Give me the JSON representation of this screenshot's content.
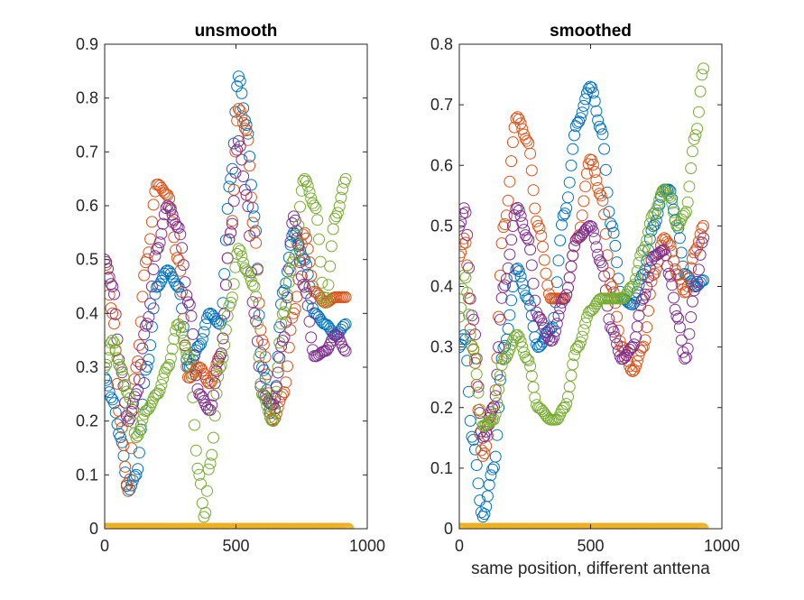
{
  "chart_data": [
    {
      "type": "scatter",
      "title": "unsmooth",
      "xlabel": "",
      "ylabel": "",
      "xlim": [
        0,
        1000
      ],
      "ylim": [
        0,
        0.9
      ],
      "xticks": [
        0,
        500,
        1000
      ],
      "xtick_labels": [
        "0",
        "500",
        "1000"
      ],
      "yticks": [
        0,
        0.1,
        0.2,
        0.3,
        0.4,
        0.5,
        0.6,
        0.7,
        0.8,
        0.9
      ],
      "ytick_labels": [
        "0",
        "0.1",
        "0.2",
        "0.3",
        "0.4",
        "0.5",
        "0.6",
        "0.7",
        "0.8",
        "0.9"
      ],
      "grid": false,
      "marker": "open-circle",
      "series": [
        {
          "color": "#0072BD",
          "x": [
            0,
            30,
            60,
            90,
            120,
            160,
            200,
            240,
            280,
            320,
            360,
            400,
            440,
            480,
            510,
            540,
            570,
            600,
            640,
            680,
            720,
            760,
            800,
            840,
            880,
            920
          ],
          "y": [
            0.28,
            0.24,
            0.17,
            0.07,
            0.1,
            0.3,
            0.45,
            0.48,
            0.45,
            0.3,
            0.34,
            0.4,
            0.38,
            0.65,
            0.84,
            0.75,
            0.58,
            0.3,
            0.2,
            0.44,
            0.55,
            0.5,
            0.4,
            0.38,
            0.36,
            0.38
          ]
        },
        {
          "color": "#D95319",
          "x": [
            0,
            30,
            60,
            90,
            120,
            160,
            200,
            240,
            280,
            320,
            360,
            400,
            440,
            480,
            510,
            540,
            570,
            600,
            640,
            680,
            720,
            760,
            800,
            840,
            880,
            920
          ],
          "y": [
            0.5,
            0.4,
            0.2,
            0.07,
            0.3,
            0.5,
            0.64,
            0.62,
            0.5,
            0.28,
            0.3,
            0.27,
            0.32,
            0.55,
            0.78,
            0.74,
            0.55,
            0.35,
            0.2,
            0.25,
            0.4,
            0.55,
            0.44,
            0.42,
            0.43,
            0.43
          ]
        },
        {
          "color": "#7E2F8E",
          "x": [
            0,
            30,
            60,
            90,
            120,
            160,
            200,
            240,
            280,
            320,
            360,
            400,
            440,
            480,
            510,
            540,
            570,
            600,
            640,
            680,
            720,
            760,
            800,
            840,
            880,
            920
          ],
          "y": [
            0.5,
            0.45,
            0.3,
            0.2,
            0.25,
            0.38,
            0.52,
            0.6,
            0.56,
            0.42,
            0.25,
            0.22,
            0.32,
            0.55,
            0.72,
            0.62,
            0.4,
            0.25,
            0.23,
            0.35,
            0.58,
            0.45,
            0.32,
            0.33,
            0.36,
            0.33
          ]
        },
        {
          "color": "#77AC30",
          "x": [
            0,
            30,
            60,
            90,
            120,
            160,
            200,
            240,
            280,
            320,
            360,
            380,
            400,
            440,
            480,
            510,
            540,
            570,
            600,
            640,
            680,
            720,
            760,
            800,
            840,
            880,
            920
          ],
          "y": [
            0.3,
            0.35,
            0.3,
            0.25,
            0.17,
            0.22,
            0.25,
            0.3,
            0.38,
            0.32,
            0.1,
            0.02,
            0.12,
            0.3,
            0.42,
            0.52,
            0.48,
            0.45,
            0.25,
            0.2,
            0.4,
            0.5,
            0.65,
            0.6,
            0.42,
            0.58,
            0.65
          ]
        },
        {
          "color": "#EDB120",
          "x": [
            0,
            930
          ],
          "y": [
            0,
            0
          ],
          "dense": true
        }
      ]
    },
    {
      "type": "scatter",
      "title": "smoothed",
      "xlabel": "same position, different anttena",
      "ylabel": "",
      "xlim": [
        0,
        1000
      ],
      "ylim": [
        0,
        0.8
      ],
      "xticks": [
        0,
        500,
        1000
      ],
      "xtick_labels": [
        "0",
        "500",
        "1000"
      ],
      "yticks": [
        0,
        0.1,
        0.2,
        0.3,
        0.4,
        0.5,
        0.6,
        0.7,
        0.8
      ],
      "ytick_labels": [
        "0",
        "0.1",
        "0.2",
        "0.3",
        "0.4",
        "0.5",
        "0.6",
        "0.7",
        "0.8"
      ],
      "grid": false,
      "marker": "open-circle",
      "series": [
        {
          "color": "#0072BD",
          "x": [
            0,
            20,
            50,
            90,
            130,
            170,
            220,
            260,
            300,
            350,
            400,
            450,
            500,
            540,
            580,
            620,
            660,
            700,
            740,
            780,
            800,
            830,
            860,
            900,
            930
          ],
          "y": [
            0.3,
            0.32,
            0.15,
            0.02,
            0.1,
            0.3,
            0.43,
            0.38,
            0.3,
            0.33,
            0.52,
            0.67,
            0.73,
            0.66,
            0.5,
            0.38,
            0.37,
            0.42,
            0.5,
            0.56,
            0.56,
            0.5,
            0.42,
            0.4,
            0.41
          ]
        },
        {
          "color": "#D95319",
          "x": [
            0,
            20,
            50,
            90,
            130,
            170,
            220,
            260,
            300,
            350,
            400,
            450,
            500,
            540,
            580,
            620,
            660,
            700,
            740,
            780,
            800,
            830,
            860,
            900,
            930
          ],
          "y": [
            0.45,
            0.48,
            0.3,
            0.12,
            0.2,
            0.5,
            0.68,
            0.64,
            0.5,
            0.38,
            0.38,
            0.48,
            0.61,
            0.55,
            0.4,
            0.3,
            0.26,
            0.3,
            0.42,
            0.48,
            0.47,
            0.42,
            0.39,
            0.46,
            0.5
          ]
        },
        {
          "color": "#7E2F8E",
          "x": [
            0,
            20,
            50,
            90,
            130,
            170,
            220,
            260,
            300,
            350,
            400,
            450,
            500,
            540,
            580,
            620,
            660,
            700,
            740,
            780,
            800,
            830,
            860,
            900,
            930
          ],
          "y": [
            0.5,
            0.53,
            0.35,
            0.15,
            0.2,
            0.4,
            0.53,
            0.48,
            0.35,
            0.31,
            0.38,
            0.48,
            0.5,
            0.44,
            0.33,
            0.28,
            0.3,
            0.38,
            0.45,
            0.46,
            0.42,
            0.35,
            0.28,
            0.4,
            0.48
          ]
        },
        {
          "color": "#77AC30",
          "x": [
            0,
            20,
            50,
            90,
            130,
            170,
            220,
            260,
            300,
            350,
            370,
            400,
            450,
            500,
            540,
            580,
            620,
            660,
            700,
            740,
            780,
            800,
            830,
            860,
            900,
            930
          ],
          "y": [
            0.35,
            0.42,
            0.3,
            0.17,
            0.18,
            0.28,
            0.32,
            0.28,
            0.2,
            0.18,
            0.18,
            0.2,
            0.3,
            0.36,
            0.38,
            0.38,
            0.38,
            0.4,
            0.46,
            0.52,
            0.56,
            0.55,
            0.5,
            0.52,
            0.65,
            0.76
          ]
        },
        {
          "color": "#EDB120",
          "x": [
            0,
            930
          ],
          "y": [
            0,
            0
          ],
          "dense": true
        }
      ]
    }
  ]
}
